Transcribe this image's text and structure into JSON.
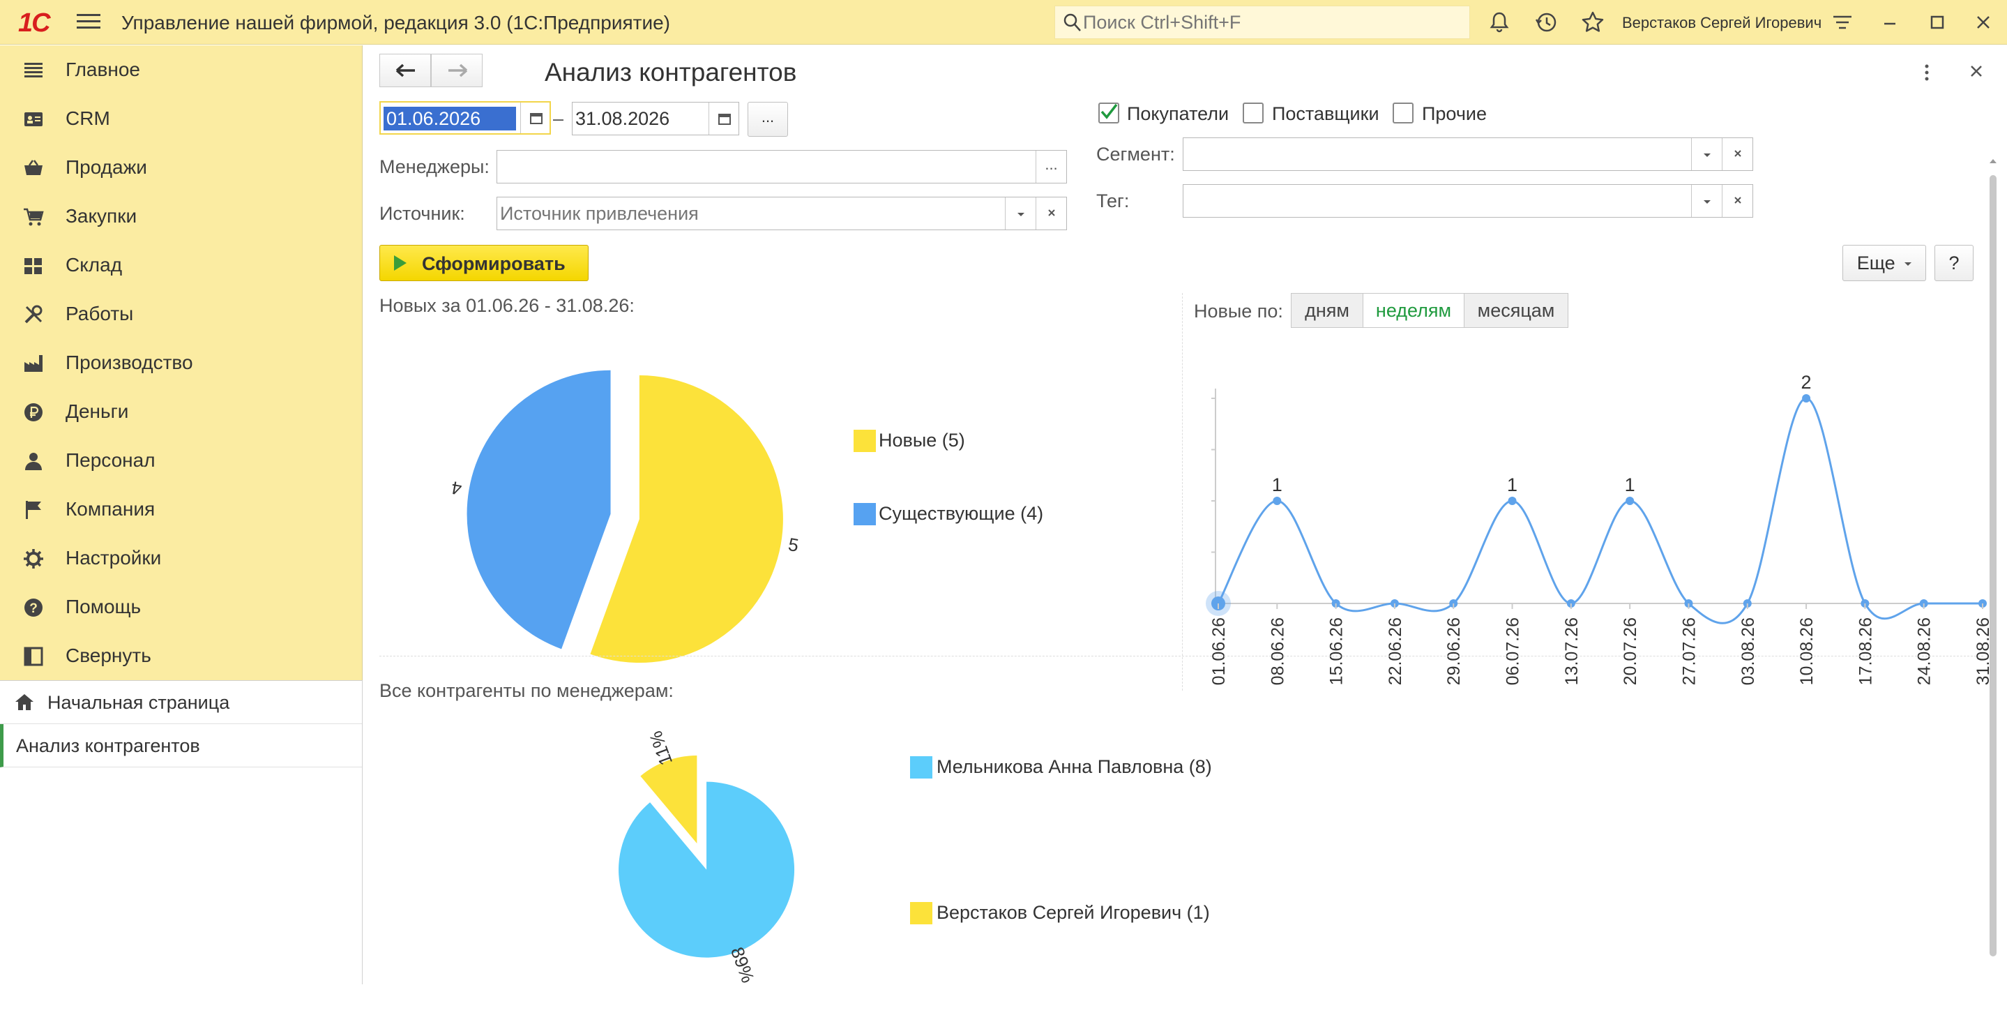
{
  "titlebar": {
    "logo": "1С",
    "app_title": "Управление нашей фирмой, редакция 3.0  (1С:Предприятие)",
    "search_placeholder": "Поиск Ctrl+Shift+F",
    "user_name": "Верстаков Сергей Игоревич"
  },
  "sidebar": {
    "items": [
      {
        "label": "Главное",
        "icon": "menu-list-icon"
      },
      {
        "label": "CRM",
        "icon": "contacts-card-icon"
      },
      {
        "label": "Продажи",
        "icon": "shopping-basket-icon"
      },
      {
        "label": "Закупки",
        "icon": "cart-icon"
      },
      {
        "label": "Склад",
        "icon": "warehouse-grid-icon"
      },
      {
        "label": "Работы",
        "icon": "tools-icon"
      },
      {
        "label": "Производство",
        "icon": "factory-icon"
      },
      {
        "label": "Деньги",
        "icon": "ruble-coin-icon"
      },
      {
        "label": "Персонал",
        "icon": "person-icon"
      },
      {
        "label": "Компания",
        "icon": "flag-icon"
      },
      {
        "label": "Настройки",
        "icon": "gear-icon"
      },
      {
        "label": "Помощь",
        "icon": "help-circle-icon"
      },
      {
        "label": "Свернуть",
        "icon": "collapse-panel-icon"
      }
    ],
    "open_windows": [
      {
        "label": "Начальная страница",
        "icon": "home-icon"
      },
      {
        "label": "Анализ контрагентов"
      }
    ]
  },
  "form": {
    "title": "Анализ контрагентов",
    "period_from": "01.06.2026",
    "period_dash": "–",
    "period_to": "31.08.2026",
    "period_more": "...",
    "managers_label": "Менеджеры:",
    "managers_value": "",
    "managers_more": "...",
    "source_label": "Источник:",
    "source_placeholder": "Источник привлечения",
    "buyers_label": "Покупатели",
    "buyers_checked": true,
    "suppliers_label": "Поставщики",
    "suppliers_checked": false,
    "others_label": "Прочие",
    "others_checked": false,
    "segment_label": "Сегмент:",
    "segment_value": "",
    "tag_label": "Тег:",
    "tag_value": "",
    "generate_label": "Сформировать",
    "more_label": "Еще",
    "help_label": "?",
    "new_for_label": "Новых за 01.06.26 - 31.08.26:",
    "new_by_label": "Новые по:",
    "group_by": [
      "дням",
      "неделям",
      "месяцам"
    ],
    "group_by_active": "неделям",
    "all_by_managers_label": "Все контрагенты по менеджерам:"
  },
  "colors": {
    "titlebar_bg": "#fbeca2",
    "yellow": "#fce23a",
    "blue": "#56a2f1",
    "cyan": "#5ccdfb",
    "line": "#5fa3eb"
  },
  "chart_data": [
    {
      "type": "pie",
      "title": "",
      "labels": [
        "Новые (5)",
        "Существующие (4)"
      ],
      "values": [
        5,
        4
      ],
      "slice_labels": [
        "5",
        "4"
      ],
      "colors": [
        "#fce23a",
        "#56a2f1"
      ],
      "legend": "right"
    },
    {
      "type": "line",
      "title": "",
      "x": [
        "01.06.26",
        "08.06.26",
        "15.06.26",
        "22.06.26",
        "29.06.26",
        "06.07.26",
        "13.07.26",
        "20.07.26",
        "27.07.26",
        "03.08.26",
        "10.08.26",
        "17.08.26",
        "24.08.26",
        "31.08.26"
      ],
      "series": [
        {
          "values": [
            0,
            1,
            0,
            0,
            0,
            1,
            0,
            1,
            0,
            0,
            2,
            0,
            0,
            0
          ]
        }
      ],
      "point_labels": [
        "",
        "1",
        "",
        "",
        "",
        "1",
        "",
        "1",
        "",
        "",
        "2",
        "",
        "",
        ""
      ],
      "ylim": [
        0,
        2
      ],
      "grid": false
    },
    {
      "type": "pie",
      "title": "",
      "labels": [
        "Мельникова Анна Павловна (8)",
        "Верстаков Сергей Игоревич (1)"
      ],
      "values": [
        8,
        1
      ],
      "slice_labels": [
        "89%",
        "11%"
      ],
      "colors": [
        "#5ccdfb",
        "#fce23a"
      ],
      "legend": "right"
    }
  ]
}
